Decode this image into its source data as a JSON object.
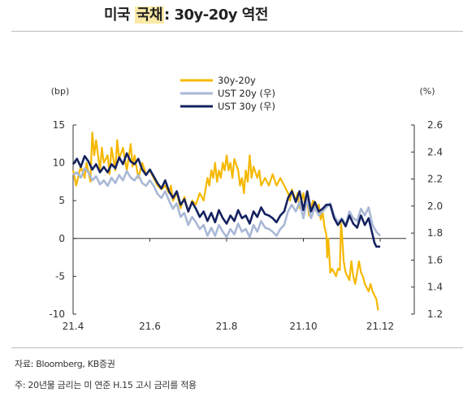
{
  "header": {
    "title_prefix": "미국 ",
    "title_highlight": "국채",
    "title_suffix": ": 30y-20y 역전"
  },
  "footer": {
    "source": "자료: Bloomberg, KB증권",
    "note": "주: 20년물 금리는 미 연준 H.15 고시 금리를 적용"
  },
  "chart_data": {
    "type": "line",
    "left_axis_label": "(bp)",
    "right_axis_label": "(%)",
    "x_ticks": [
      "21.4",
      "21.6",
      "21.8",
      "21.10",
      "21.12"
    ],
    "x_tick_positions": [
      0,
      2,
      4,
      6,
      8
    ],
    "xlim": [
      0,
      8
    ],
    "left_ylim": [
      -10,
      15
    ],
    "left_ticks": [
      15,
      10,
      5,
      0,
      -5,
      -10
    ],
    "right_ylim": [
      1.2,
      2.6
    ],
    "right_ticks": [
      "2.6",
      "2.4",
      "2.2",
      "2.0",
      "1.8",
      "1.6",
      "1.4",
      "1.2"
    ],
    "right_tick_values": [
      2.6,
      2.4,
      2.2,
      2.0,
      1.8,
      1.6,
      1.4,
      1.2
    ],
    "series": [
      {
        "name": "30y-20y",
        "axis": "left",
        "color": "#f5b800",
        "points": [
          [
            0.0,
            9
          ],
          [
            0.08,
            7
          ],
          [
            0.15,
            8.5
          ],
          [
            0.2,
            9.5
          ],
          [
            0.3,
            8
          ],
          [
            0.35,
            10
          ],
          [
            0.45,
            7.5
          ],
          [
            0.5,
            14
          ],
          [
            0.55,
            11
          ],
          [
            0.6,
            13
          ],
          [
            0.7,
            9
          ],
          [
            0.75,
            12
          ],
          [
            0.8,
            10
          ],
          [
            0.9,
            11
          ],
          [
            0.95,
            8.5
          ],
          [
            1.0,
            12
          ],
          [
            1.1,
            9
          ],
          [
            1.15,
            13
          ],
          [
            1.2,
            10.5
          ],
          [
            1.3,
            12
          ],
          [
            1.4,
            9
          ],
          [
            1.5,
            12.5
          ],
          [
            1.55,
            9.5
          ],
          [
            1.6,
            11
          ],
          [
            1.7,
            8
          ],
          [
            1.8,
            10
          ],
          [
            1.9,
            8.5
          ],
          [
            2.0,
            9
          ],
          [
            2.1,
            8
          ],
          [
            2.2,
            7
          ],
          [
            2.3,
            6.5
          ],
          [
            2.4,
            7
          ],
          [
            2.5,
            6
          ],
          [
            2.55,
            7
          ],
          [
            2.6,
            5
          ],
          [
            2.7,
            6
          ],
          [
            2.8,
            4
          ],
          [
            2.9,
            5.5
          ],
          [
            3.0,
            3.5
          ],
          [
            3.1,
            5
          ],
          [
            3.2,
            4.5
          ],
          [
            3.3,
            6
          ],
          [
            3.4,
            5
          ],
          [
            3.45,
            6.5
          ],
          [
            3.5,
            8
          ],
          [
            3.55,
            7
          ],
          [
            3.6,
            9
          ],
          [
            3.65,
            8
          ],
          [
            3.7,
            10
          ],
          [
            3.75,
            7.5
          ],
          [
            3.8,
            9
          ],
          [
            3.85,
            8
          ],
          [
            3.9,
            10
          ],
          [
            3.95,
            9
          ],
          [
            4.0,
            11
          ],
          [
            4.05,
            9
          ],
          [
            4.1,
            10
          ],
          [
            4.15,
            8
          ],
          [
            4.2,
            10.5
          ],
          [
            4.3,
            9
          ],
          [
            4.35,
            7
          ],
          [
            4.4,
            8
          ],
          [
            4.45,
            6
          ],
          [
            4.5,
            9
          ],
          [
            4.55,
            7.5
          ],
          [
            4.6,
            11
          ],
          [
            4.65,
            8
          ],
          [
            4.7,
            9.5
          ],
          [
            4.8,
            8
          ],
          [
            4.85,
            9
          ],
          [
            4.9,
            7
          ],
          [
            5.0,
            8
          ],
          [
            5.1,
            7
          ],
          [
            5.2,
            8.5
          ],
          [
            5.3,
            7
          ],
          [
            5.4,
            8
          ],
          [
            5.5,
            7
          ],
          [
            5.6,
            6
          ],
          [
            5.65,
            5
          ],
          [
            5.7,
            6.5
          ],
          [
            5.8,
            5
          ],
          [
            5.85,
            6
          ],
          [
            5.9,
            4
          ],
          [
            6.0,
            6
          ],
          [
            6.05,
            4
          ],
          [
            6.1,
            5
          ],
          [
            6.15,
            3
          ],
          [
            6.2,
            4
          ],
          [
            6.25,
            5
          ],
          [
            6.3,
            4
          ],
          [
            6.35,
            3.5
          ],
          [
            6.4,
            4.5
          ],
          [
            6.45,
            2.5
          ],
          [
            6.5,
            3.5
          ],
          [
            6.55,
            1.5
          ],
          [
            6.6,
            0.5
          ],
          [
            6.62,
            -2.5
          ],
          [
            6.65,
            0
          ],
          [
            6.7,
            -4.5
          ],
          [
            6.75,
            -4
          ],
          [
            6.8,
            -4.5
          ],
          [
            6.85,
            -5
          ],
          [
            6.9,
            -4
          ],
          [
            6.95,
            -4.2
          ],
          [
            6.98,
            2
          ],
          [
            7.0,
            1
          ],
          [
            7.05,
            -3
          ],
          [
            7.1,
            -4.5
          ],
          [
            7.15,
            -5
          ],
          [
            7.2,
            -5.5
          ],
          [
            7.25,
            -3
          ],
          [
            7.3,
            -5
          ],
          [
            7.35,
            -6
          ],
          [
            7.4,
            -4.5
          ],
          [
            7.45,
            -3
          ],
          [
            7.5,
            -4.5
          ],
          [
            7.55,
            -5
          ],
          [
            7.6,
            -6
          ],
          [
            7.65,
            -6.5
          ],
          [
            7.7,
            -7
          ],
          [
            7.75,
            -6
          ],
          [
            7.8,
            -7
          ],
          [
            7.85,
            -7.5
          ],
          [
            7.9,
            -8
          ],
          [
            7.95,
            -9.5
          ]
        ]
      },
      {
        "name": "UST 20y (우)",
        "axis": "right",
        "color": "#a9b8d6",
        "points": [
          [
            0.0,
            2.23
          ],
          [
            0.1,
            2.25
          ],
          [
            0.2,
            2.21
          ],
          [
            0.3,
            2.28
          ],
          [
            0.4,
            2.25
          ],
          [
            0.5,
            2.19
          ],
          [
            0.6,
            2.22
          ],
          [
            0.7,
            2.16
          ],
          [
            0.8,
            2.19
          ],
          [
            0.9,
            2.15
          ],
          [
            1.0,
            2.21
          ],
          [
            1.1,
            2.17
          ],
          [
            1.2,
            2.23
          ],
          [
            1.3,
            2.19
          ],
          [
            1.4,
            2.26
          ],
          [
            1.5,
            2.21
          ],
          [
            1.6,
            2.19
          ],
          [
            1.7,
            2.23
          ],
          [
            1.8,
            2.17
          ],
          [
            1.9,
            2.15
          ],
          [
            2.0,
            2.19
          ],
          [
            2.1,
            2.15
          ],
          [
            2.2,
            2.09
          ],
          [
            2.3,
            2.06
          ],
          [
            2.4,
            2.11
          ],
          [
            2.5,
            2.04
          ],
          [
            2.6,
            1.98
          ],
          [
            2.7,
            2.02
          ],
          [
            2.8,
            1.92
          ],
          [
            2.9,
            1.95
          ],
          [
            3.0,
            1.86
          ],
          [
            3.1,
            1.92
          ],
          [
            3.2,
            1.88
          ],
          [
            3.3,
            1.83
          ],
          [
            3.4,
            1.86
          ],
          [
            3.5,
            1.78
          ],
          [
            3.6,
            1.84
          ],
          [
            3.7,
            1.78
          ],
          [
            3.8,
            1.86
          ],
          [
            3.9,
            1.81
          ],
          [
            4.0,
            1.77
          ],
          [
            4.1,
            1.83
          ],
          [
            4.2,
            1.79
          ],
          [
            4.3,
            1.87
          ],
          [
            4.4,
            1.81
          ],
          [
            4.5,
            1.83
          ],
          [
            4.6,
            1.77
          ],
          [
            4.7,
            1.86
          ],
          [
            4.8,
            1.81
          ],
          [
            4.9,
            1.89
          ],
          [
            5.0,
            1.84
          ],
          [
            5.1,
            1.83
          ],
          [
            5.2,
            1.81
          ],
          [
            5.3,
            1.78
          ],
          [
            5.4,
            1.83
          ],
          [
            5.5,
            1.86
          ],
          [
            5.6,
            1.96
          ],
          [
            5.7,
            2.01
          ],
          [
            5.8,
            1.96
          ],
          [
            5.9,
            2.03
          ],
          [
            6.0,
            1.91
          ],
          [
            6.1,
            2.05
          ],
          [
            6.2,
            1.91
          ],
          [
            6.3,
            1.99
          ],
          [
            6.4,
            1.93
          ],
          [
            6.5,
            1.96
          ],
          [
            6.6,
            1.99
          ],
          [
            6.7,
            2.02
          ],
          [
            6.8,
            1.93
          ],
          [
            6.9,
            1.88
          ],
          [
            7.0,
            1.91
          ],
          [
            7.1,
            1.86
          ],
          [
            7.2,
            1.96
          ],
          [
            7.3,
            1.91
          ],
          [
            7.4,
            1.89
          ],
          [
            7.5,
            1.98
          ],
          [
            7.6,
            1.93
          ],
          [
            7.7,
            1.99
          ],
          [
            7.8,
            1.86
          ],
          [
            7.9,
            1.81
          ],
          [
            8.0,
            1.78
          ]
        ]
      },
      {
        "name": "UST 30y (우)",
        "axis": "right",
        "color": "#14225f",
        "points": [
          [
            0.0,
            2.31
          ],
          [
            0.1,
            2.35
          ],
          [
            0.2,
            2.29
          ],
          [
            0.3,
            2.37
          ],
          [
            0.4,
            2.33
          ],
          [
            0.5,
            2.27
          ],
          [
            0.6,
            2.31
          ],
          [
            0.7,
            2.25
          ],
          [
            0.8,
            2.29
          ],
          [
            0.9,
            2.25
          ],
          [
            1.0,
            2.31
          ],
          [
            1.1,
            2.28
          ],
          [
            1.2,
            2.36
          ],
          [
            1.3,
            2.31
          ],
          [
            1.4,
            2.39
          ],
          [
            1.5,
            2.33
          ],
          [
            1.6,
            2.31
          ],
          [
            1.7,
            2.35
          ],
          [
            1.8,
            2.27
          ],
          [
            1.9,
            2.23
          ],
          [
            2.0,
            2.27
          ],
          [
            2.1,
            2.22
          ],
          [
            2.2,
            2.17
          ],
          [
            2.3,
            2.13
          ],
          [
            2.4,
            2.19
          ],
          [
            2.5,
            2.11
          ],
          [
            2.6,
            2.06
          ],
          [
            2.7,
            2.11
          ],
          [
            2.8,
            2.01
          ],
          [
            2.9,
            2.05
          ],
          [
            3.0,
            1.96
          ],
          [
            3.1,
            2.03
          ],
          [
            3.2,
            1.98
          ],
          [
            3.3,
            1.92
          ],
          [
            3.4,
            1.96
          ],
          [
            3.5,
            1.89
          ],
          [
            3.6,
            1.95
          ],
          [
            3.7,
            1.88
          ],
          [
            3.8,
            1.97
          ],
          [
            3.9,
            1.91
          ],
          [
            4.0,
            1.87
          ],
          [
            4.1,
            1.93
          ],
          [
            4.2,
            1.89
          ],
          [
            4.3,
            1.97
          ],
          [
            4.4,
            1.91
          ],
          [
            4.5,
            1.93
          ],
          [
            4.6,
            1.87
          ],
          [
            4.7,
            1.96
          ],
          [
            4.8,
            1.92
          ],
          [
            4.9,
            1.99
          ],
          [
            5.0,
            1.94
          ],
          [
            5.1,
            1.93
          ],
          [
            5.2,
            1.91
          ],
          [
            5.3,
            1.88
          ],
          [
            5.4,
            1.93
          ],
          [
            5.5,
            1.96
          ],
          [
            5.6,
            2.06
          ],
          [
            5.7,
            2.11
          ],
          [
            5.8,
            2.03
          ],
          [
            5.9,
            2.11
          ],
          [
            6.0,
            1.97
          ],
          [
            6.1,
            2.11
          ],
          [
            6.2,
            1.96
          ],
          [
            6.3,
            2.03
          ],
          [
            6.4,
            1.96
          ],
          [
            6.5,
            1.98
          ],
          [
            6.6,
            2.01
          ],
          [
            6.7,
            2.01
          ],
          [
            6.8,
            1.91
          ],
          [
            6.9,
            1.86
          ],
          [
            7.0,
            1.9
          ],
          [
            7.1,
            1.85
          ],
          [
            7.2,
            1.93
          ],
          [
            7.3,
            1.87
          ],
          [
            7.4,
            1.84
          ],
          [
            7.5,
            1.93
          ],
          [
            7.6,
            1.86
          ],
          [
            7.7,
            1.91
          ],
          [
            7.8,
            1.79
          ],
          [
            7.85,
            1.73
          ],
          [
            7.9,
            1.7
          ],
          [
            8.0,
            1.7
          ]
        ]
      }
    ]
  }
}
